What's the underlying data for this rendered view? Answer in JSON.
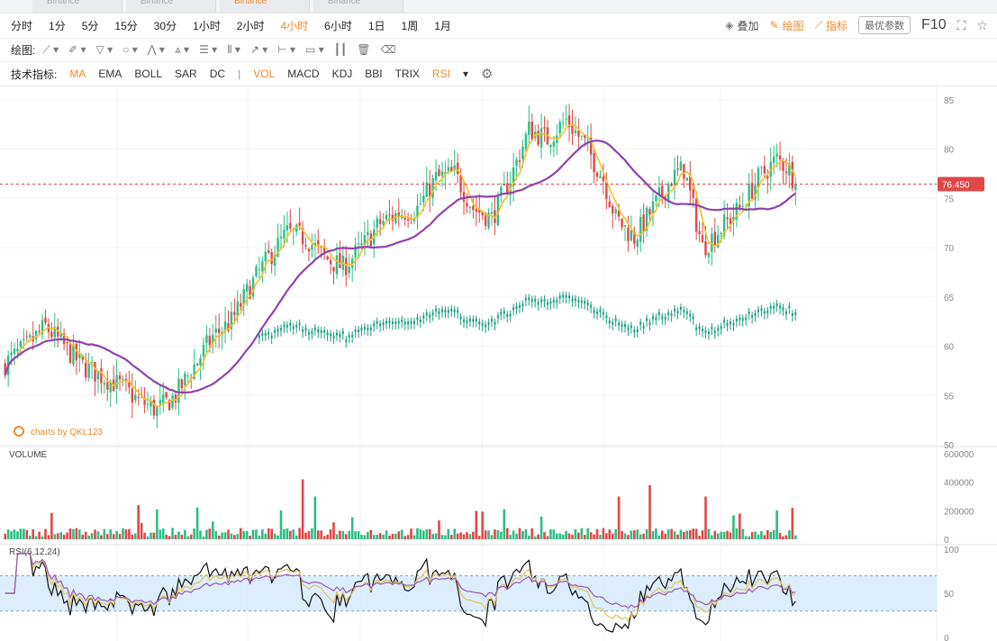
{
  "tabs": [
    {
      "label": "Binance"
    },
    {
      "label": "Binance"
    },
    {
      "label": "Binance"
    },
    {
      "label": "Binance"
    }
  ],
  "periods": [
    "分时",
    "1分",
    "5分",
    "15分",
    "30分",
    "1小时",
    "2小时",
    "4小时",
    "6小时",
    "1日",
    "1周",
    "1月"
  ],
  "active_period": "4小时",
  "right_tools": {
    "overlay": "叠加",
    "draw": "绘图",
    "indicator": "指标",
    "params": "最优参数",
    "f10": "F10"
  },
  "draw_label": "绘图:",
  "indicator_label": "技术指标:",
  "indicators": [
    {
      "label": "MA",
      "on": true
    },
    {
      "label": "EMA",
      "on": false
    },
    {
      "label": "BOLL",
      "on": false
    },
    {
      "label": "SAR",
      "on": false
    },
    {
      "label": "DC",
      "on": false
    }
  ],
  "indicators2": [
    {
      "label": "VOL",
      "on": true
    },
    {
      "label": "MACD",
      "on": false
    },
    {
      "label": "KDJ",
      "on": false
    },
    {
      "label": "BBI",
      "on": false
    },
    {
      "label": "TRIX",
      "on": false
    },
    {
      "label": "RSI",
      "on": true
    }
  ],
  "indicator_sep": "|",
  "colors": {
    "up": "#2ebd85",
    "down": "#e04848",
    "accent": "#f08a2e",
    "ma1": "#f2c12e",
    "ma2": "#8e44ad",
    "rsi_band": "#cfe6fb",
    "price_line": "#e04848"
  },
  "chart_data": {
    "type": "candlestick",
    "price_axis": {
      "ticks": [
        85,
        80,
        75,
        70,
        65,
        60,
        55,
        50
      ],
      "ylim": [
        50,
        86
      ]
    },
    "current_price": "76.450",
    "watermark": "charts by QKL123",
    "price_anchors": [
      [
        0,
        58
      ],
      [
        8,
        60
      ],
      [
        14,
        62
      ],
      [
        20,
        60
      ],
      [
        26,
        58
      ],
      [
        32,
        57
      ],
      [
        38,
        56
      ],
      [
        44,
        54.5
      ],
      [
        50,
        53.5
      ],
      [
        56,
        55
      ],
      [
        62,
        58
      ],
      [
        68,
        61
      ],
      [
        74,
        62.5
      ],
      [
        80,
        66
      ],
      [
        86,
        69
      ],
      [
        92,
        71.5
      ],
      [
        98,
        71
      ],
      [
        104,
        69
      ],
      [
        110,
        68
      ],
      [
        116,
        70
      ],
      [
        122,
        72.5
      ],
      [
        128,
        73.5
      ],
      [
        134,
        74
      ],
      [
        140,
        77
      ],
      [
        146,
        77.5
      ],
      [
        152,
        74
      ],
      [
        158,
        73
      ],
      [
        164,
        77
      ],
      [
        170,
        82
      ],
      [
        176,
        81
      ],
      [
        182,
        83
      ],
      [
        188,
        80.5
      ],
      [
        194,
        77
      ],
      [
        198,
        73
      ],
      [
        204,
        71
      ],
      [
        210,
        74
      ],
      [
        216,
        77
      ],
      [
        220,
        78
      ],
      [
        226,
        70
      ],
      [
        232,
        72
      ],
      [
        238,
        74
      ],
      [
        244,
        77
      ],
      [
        250,
        79
      ],
      [
        254,
        78
      ],
      [
        256,
        76.45
      ]
    ],
    "ma_short_lag": 5,
    "ma_long_lag": 28,
    "volume": {
      "label": "VOLUME",
      "ticks": [
        "600000",
        "400000",
        "200000",
        "0"
      ],
      "ymax": 600000
    },
    "rsi": {
      "label": "RSI(6,12,24)",
      "ticks": [
        "100",
        "50",
        "0"
      ],
      "band": [
        30,
        70
      ]
    }
  }
}
